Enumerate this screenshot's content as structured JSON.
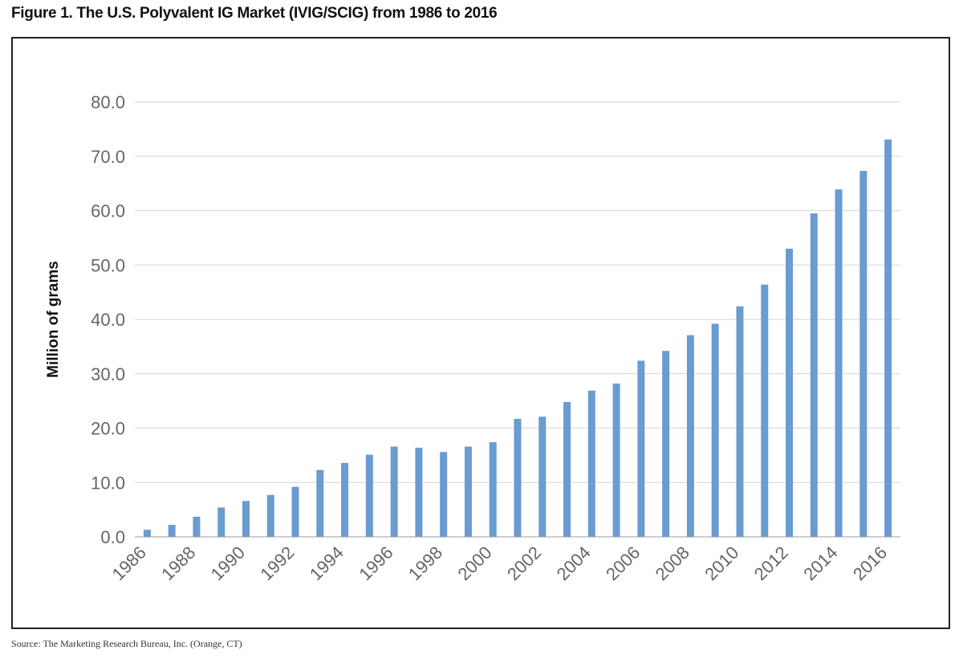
{
  "figure_title": "Figure 1. The U.S. Polyvalent IG Market (IVIG/SCIG) from 1986 to 2016",
  "source": "Source: The Marketing Research Bureau, Inc. (Orange, CT)",
  "chart_data": {
    "type": "bar",
    "ylabel": "Million of grams",
    "xlabel": "",
    "ylim": [
      0,
      80
    ],
    "yticks": [
      "0.0",
      "10.0",
      "20.0",
      "30.0",
      "40.0",
      "50.0",
      "60.0",
      "70.0",
      "80.0"
    ],
    "grid": true,
    "bar_color": "#6a9bd1",
    "categories": [
      "1986",
      "1987",
      "1988",
      "1989",
      "1990",
      "1991",
      "1992",
      "1993",
      "1994",
      "1995",
      "1996",
      "1997",
      "1998",
      "1999",
      "2000",
      "2001",
      "2002",
      "2003",
      "2004",
      "2005",
      "2006",
      "2007",
      "2008",
      "2009",
      "2010",
      "2011",
      "2012",
      "2013",
      "2014",
      "2015",
      "2016"
    ],
    "x_tick_labels": [
      "1986",
      "1988",
      "1990",
      "1992",
      "1994",
      "1996",
      "1998",
      "2000",
      "2002",
      "2004",
      "2006",
      "2008",
      "2010",
      "2012",
      "2014",
      "2016"
    ],
    "values": [
      1.3,
      2.2,
      3.7,
      5.4,
      6.6,
      7.7,
      9.2,
      12.3,
      13.6,
      15.1,
      16.6,
      16.4,
      15.6,
      16.6,
      17.4,
      21.7,
      22.1,
      24.8,
      26.9,
      28.2,
      32.4,
      34.2,
      37.1,
      39.2,
      42.4,
      46.4,
      53.0,
      59.5,
      63.9,
      67.3,
      73.1
    ]
  }
}
